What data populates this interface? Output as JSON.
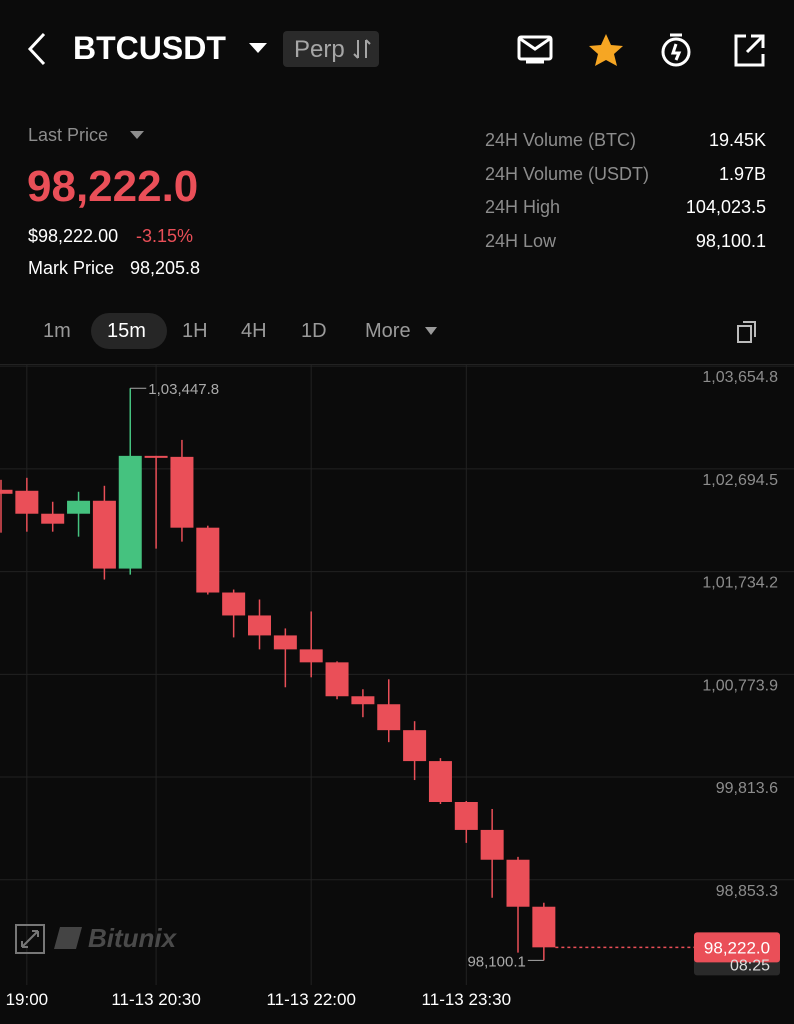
{
  "header": {
    "symbol": "BTCUSDT",
    "tag": "Perp"
  },
  "price": {
    "label": "Last Price",
    "last": "98,222.0",
    "usd": "$98,222.00",
    "change": "-3.15%",
    "mark_label": "Mark Price",
    "mark": "98,205.8"
  },
  "stats": [
    [
      "24H Volume (BTC)",
      "19.45K"
    ],
    [
      "24H Volume (USDT)",
      "1.97B"
    ],
    [
      "24H High",
      "104,023.5"
    ],
    [
      "24H Low",
      "98,100.1"
    ]
  ],
  "intervals": [
    "1m",
    "15m",
    "1H",
    "4H",
    "1D",
    "More"
  ],
  "watermark": "Bitunix",
  "chart_data": {
    "type": "candlestick",
    "categories": [
      null,
      "19:00",
      null,
      null,
      null,
      null,
      "11-13 20:30",
      null,
      null,
      null,
      null,
      null,
      "11-13 22:00",
      null,
      null,
      null,
      null,
      null,
      "11-13 23:30",
      null,
      null,
      null
    ],
    "open": [
      102498.7,
      102489.4,
      102274.9,
      102274.9,
      102396.2,
      101762.2,
      102815.7,
      102806.4,
      102144.4,
      101538.4,
      101324.0,
      101137.5,
      101007.0,
      100885.8,
      100568.8,
      100494.2,
      100251.8,
      99962.8,
      99580.5,
      99319.5,
      99040.8,
      98601.6
    ],
    "high": [
      102591.9,
      102610.6,
      102386.8,
      102480.1,
      102536.0,
      103447.8,
      102815.7,
      102964.9,
      102163.1,
      101566.4,
      101473.1,
      101202.8,
      101361.3,
      100895.1,
      100634.1,
      100727.3,
      100335.7,
      99990.7,
      99589.8,
      99515.3,
      99067.7,
      98638.9
    ],
    "low": [
      102097.8,
      102107.1,
      102107.1,
      102060.5,
      101659.6,
      101706.2,
      101948.6,
      102013.9,
      101519.8,
      101118.9,
      101007.0,
      100652.7,
      100745.9,
      100540.8,
      100373.0,
      100139.9,
      99785.6,
      99561.8,
      99198.3,
      98685.5,
      98172.6,
      98100.1
    ],
    "close": [
      102461.4,
      102274.9,
      102181.7,
      102396.2,
      101762.2,
      102815.7,
      102797.1,
      102144.4,
      101538.4,
      101324.0,
      101137.5,
      101007.0,
      100885.8,
      100568.8,
      100494.2,
      100251.8,
      99962.8,
      99580.5,
      99319.5,
      99040.8,
      98601.6,
      98222.0
    ],
    "up_color": "#45c27f",
    "down_color": "#ea4f58",
    "ylim": [
      97870,
      103665
    ],
    "yticks": [
      {
        "value": 103654.8,
        "label": "1,03,654.8"
      },
      {
        "value": 102694.5,
        "label": "1,02,694.5"
      },
      {
        "value": 101734.2,
        "label": "1,01,734.2"
      },
      {
        "value": 100773.9,
        "label": "1,00,773.9"
      },
      {
        "value": 99813.6,
        "label": "99,813.6"
      },
      {
        "value": 98853.3,
        "label": "98,853.3"
      }
    ],
    "grid": true,
    "annotations": [
      {
        "value": 103447.8,
        "label": "1,03,447.8"
      },
      {
        "value": 98100.1,
        "label": "98,100.1"
      }
    ],
    "price_tag": {
      "value": 98222.0,
      "label": "98,222.0",
      "countdown": "08:25"
    }
  }
}
